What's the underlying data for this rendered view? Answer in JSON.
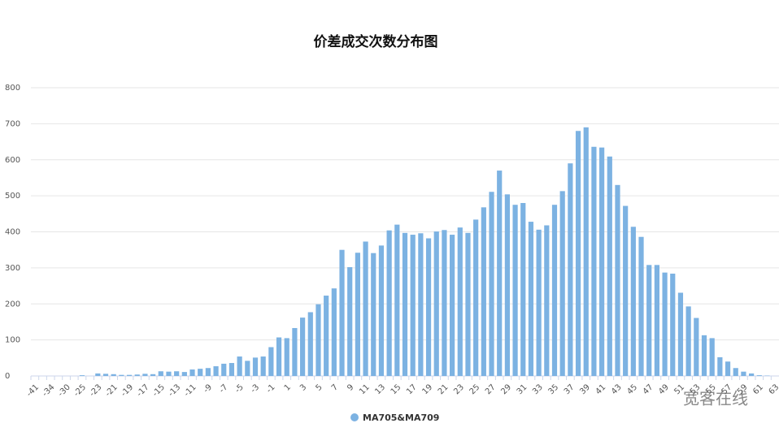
{
  "chart_data": {
    "type": "bar",
    "title": "价差成交次数分布图",
    "categories": [
      "-41",
      null,
      "-34",
      null,
      "-30",
      null,
      "-25",
      null,
      "-23",
      null,
      "-21",
      null,
      "-19",
      null,
      "-17",
      null,
      "-15",
      null,
      "-13",
      null,
      "-11",
      null,
      "-9",
      null,
      "-7",
      null,
      "-5",
      null,
      "-3",
      null,
      "-1",
      null,
      "1",
      null,
      "3",
      null,
      "5",
      null,
      "7",
      null,
      "9",
      null,
      "11",
      null,
      "13",
      null,
      "15",
      null,
      "17",
      null,
      "19",
      null,
      "21",
      null,
      "23",
      null,
      "25",
      null,
      "27",
      null,
      "29",
      null,
      "31",
      null,
      "33",
      null,
      "35",
      null,
      "37",
      null,
      "39",
      null,
      "41",
      null,
      "43",
      null,
      "45",
      null,
      "47",
      null,
      "49",
      null,
      "51",
      null,
      "53",
      null,
      "55",
      null,
      "57",
      null,
      "59",
      null,
      "61",
      null,
      "63"
    ],
    "series": [
      {
        "name": "MA705&MA709",
        "color": "#7cb2e2",
        "values": [
          0,
          0,
          0,
          0,
          0,
          0,
          2,
          0,
          7,
          6,
          5,
          3,
          3,
          4,
          6,
          5,
          13,
          12,
          13,
          11,
          18,
          20,
          22,
          27,
          34,
          36,
          54,
          42,
          51,
          54,
          80,
          107,
          105,
          133,
          162,
          177,
          199,
          223,
          243,
          350,
          302,
          342,
          373,
          341,
          362,
          404,
          420,
          397,
          392,
          396,
          382,
          401,
          405,
          392,
          412,
          397,
          434,
          468,
          511,
          570,
          504,
          475,
          480,
          428,
          406,
          418,
          475,
          513,
          590,
          680,
          690,
          636,
          634,
          609,
          530,
          472,
          414,
          386,
          308,
          308,
          287,
          284,
          231,
          193,
          161,
          113,
          105,
          52,
          40,
          22,
          12,
          7,
          2,
          1,
          0
        ]
      }
    ],
    "ylim": [
      0,
      800
    ],
    "yticks": [
      0,
      100,
      200,
      300,
      400,
      500,
      600,
      700,
      800
    ],
    "grid": true,
    "legend": "bottom"
  },
  "watermark": "宽客在线"
}
